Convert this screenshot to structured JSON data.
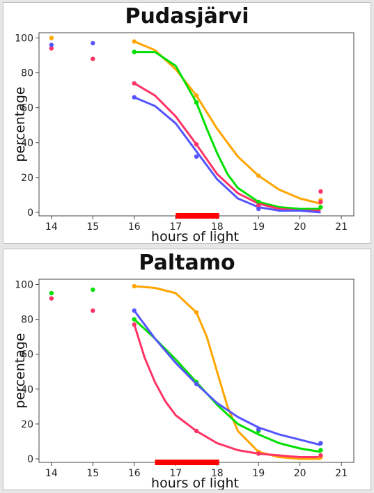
{
  "chart_data": [
    {
      "type": "scatter",
      "title": "Pudasjärvi",
      "xlabel": "hours of light",
      "ylabel": "percentage",
      "xlim": [
        13.7,
        21.3
      ],
      "ylim": [
        -2,
        103
      ],
      "xticks": [
        14,
        15,
        16,
        17,
        18,
        19,
        20,
        21
      ],
      "yticks": [
        0,
        20,
        40,
        60,
        80,
        100
      ],
      "critical_range": [
        17.0,
        18.05
      ],
      "critical_color": "#ff0000",
      "series": [
        {
          "color": "#ffa500",
          "points": [
            [
              14,
              100
            ],
            [
              16,
              98
            ],
            [
              17.5,
              67
            ],
            [
              19,
              21
            ],
            [
              20.5,
              7
            ]
          ],
          "curve": [
            [
              16,
              98
            ],
            [
              16.5,
              93
            ],
            [
              17,
              82
            ],
            [
              17.5,
              67
            ],
            [
              18,
              48
            ],
            [
              18.5,
              32
            ],
            [
              19,
              21
            ],
            [
              19.5,
              13
            ],
            [
              20,
              8
            ],
            [
              20.5,
              5
            ]
          ]
        },
        {
          "color": "#00e000",
          "points": [
            [
              16,
              92
            ],
            [
              17.5,
              63
            ],
            [
              19,
              6
            ],
            [
              20.5,
              3
            ]
          ],
          "curve": [
            [
              16,
              92
            ],
            [
              16.5,
              92
            ],
            [
              17,
              84
            ],
            [
              17.5,
              63
            ],
            [
              17.75,
              48
            ],
            [
              18,
              34
            ],
            [
              18.25,
              22
            ],
            [
              18.5,
              14
            ],
            [
              19,
              6
            ],
            [
              19.5,
              3
            ],
            [
              20,
              2
            ],
            [
              20.5,
              2
            ]
          ]
        },
        {
          "color": "#ff3366",
          "points": [
            [
              14,
              94
            ],
            [
              15,
              88
            ],
            [
              16,
              74
            ],
            [
              17.5,
              39
            ],
            [
              19,
              4
            ],
            [
              20.5,
              12
            ],
            [
              20.5,
              6
            ]
          ],
          "curve": [
            [
              16,
              74
            ],
            [
              16.5,
              67
            ],
            [
              17,
              55
            ],
            [
              17.5,
              39
            ],
            [
              18,
              22
            ],
            [
              18.5,
              11
            ],
            [
              19,
              5
            ],
            [
              19.5,
              2
            ],
            [
              20,
              1
            ],
            [
              20.5,
              1
            ]
          ]
        },
        {
          "color": "#5555ff",
          "points": [
            [
              14,
              96
            ],
            [
              15,
              97
            ],
            [
              16,
              66
            ],
            [
              17.5,
              32
            ],
            [
              19,
              2
            ]
          ],
          "curve": [
            [
              16,
              66
            ],
            [
              16.5,
              61
            ],
            [
              17,
              51
            ],
            [
              17.5,
              35
            ],
            [
              18,
              19
            ],
            [
              18.5,
              8
            ],
            [
              19,
              3
            ],
            [
              19.5,
              1
            ],
            [
              20,
              1
            ],
            [
              20.5,
              0
            ]
          ]
        }
      ]
    },
    {
      "type": "scatter",
      "title": "Paltamo",
      "xlabel": "hours of light",
      "ylabel": "percentage",
      "xlim": [
        13.7,
        21.3
      ],
      "ylim": [
        -2,
        103
      ],
      "xticks": [
        14,
        15,
        16,
        17,
        18,
        19,
        20,
        21
      ],
      "yticks": [
        0,
        20,
        40,
        60,
        80,
        100
      ],
      "critical_range": [
        16.5,
        18.05
      ],
      "critical_color": "#ff0000",
      "series": [
        {
          "color": "#ffa500",
          "points": [
            [
              16,
              99
            ],
            [
              17.5,
              84
            ],
            [
              19,
              4
            ],
            [
              20.5,
              1
            ]
          ],
          "curve": [
            [
              16,
              99
            ],
            [
              16.5,
              98
            ],
            [
              17,
              95
            ],
            [
              17.5,
              84
            ],
            [
              17.75,
              70
            ],
            [
              18,
              50
            ],
            [
              18.25,
              30
            ],
            [
              18.5,
              16
            ],
            [
              19,
              4
            ],
            [
              19.5,
              1
            ],
            [
              20,
              0
            ],
            [
              20.5,
              0
            ]
          ]
        },
        {
          "color": "#00e000",
          "points": [
            [
              14,
              95
            ],
            [
              15,
              97
            ],
            [
              16,
              80
            ],
            [
              17.5,
              44
            ],
            [
              19,
              16
            ],
            [
              20.5,
              5
            ]
          ],
          "curve": [
            [
              16,
              80
            ],
            [
              16.5,
              69
            ],
            [
              17,
              57
            ],
            [
              17.5,
              44
            ],
            [
              18,
              31
            ],
            [
              18.5,
              20
            ],
            [
              19,
              14
            ],
            [
              19.5,
              9
            ],
            [
              20,
              6
            ],
            [
              20.5,
              4
            ]
          ]
        },
        {
          "color": "#ff3366",
          "points": [
            [
              14,
              92
            ],
            [
              15,
              85
            ],
            [
              16,
              77
            ],
            [
              17.5,
              16
            ],
            [
              19,
              3
            ],
            [
              20.5,
              2
            ]
          ],
          "curve": [
            [
              16,
              77
            ],
            [
              16.25,
              58
            ],
            [
              16.5,
              44
            ],
            [
              16.75,
              33
            ],
            [
              17,
              25
            ],
            [
              17.5,
              16
            ],
            [
              18,
              9
            ],
            [
              18.5,
              5
            ],
            [
              19,
              3
            ],
            [
              19.5,
              2
            ],
            [
              20,
              1
            ],
            [
              20.5,
              1
            ]
          ]
        },
        {
          "color": "#5555ff",
          "points": [
            [
              16,
              85
            ],
            [
              17.5,
              43
            ],
            [
              19,
              17
            ],
            [
              20.5,
              9
            ]
          ],
          "curve": [
            [
              16,
              85
            ],
            [
              16.5,
              69
            ],
            [
              17,
              55
            ],
            [
              17.5,
              43
            ],
            [
              18,
              32
            ],
            [
              18.5,
              24
            ],
            [
              19,
              18
            ],
            [
              19.5,
              14
            ],
            [
              20,
              11
            ],
            [
              20.5,
              8
            ]
          ]
        }
      ]
    }
  ]
}
